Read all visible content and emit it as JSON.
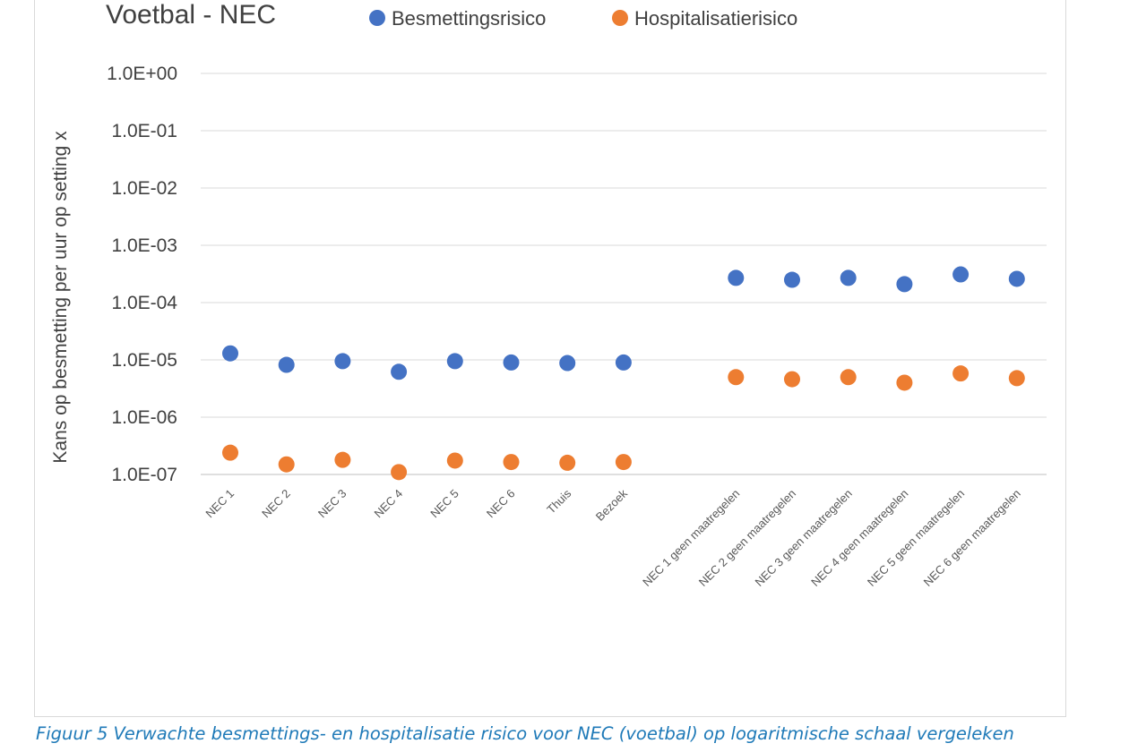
{
  "chart_data": {
    "type": "scatter",
    "title": "Voetbal - NEC",
    "xlabel": "",
    "ylabel": "Kans op besmetting per uur op setting x",
    "yscale": "log",
    "ylim": [
      1e-07,
      1
    ],
    "yticks": [
      "1.0E-07",
      "1.0E-06",
      "1.0E-05",
      "1.0E-04",
      "1.0E-03",
      "1.0E-02",
      "1.0E-01",
      "1.0E+00"
    ],
    "grid": true,
    "legend_position": "top",
    "categories": [
      "NEC 1",
      "NEC 2",
      "NEC 3",
      "NEC 4",
      "NEC 5",
      "NEC 6",
      "Thuis",
      "Bezoek",
      "",
      "NEC 1 geen maatregelen",
      "NEC 2 geen maatregelen",
      "NEC 3 geen maatregelen",
      "NEC 4 geen maatregelen",
      "NEC 5 geen maatregelen",
      "NEC 6 geen maatregelen"
    ],
    "series": [
      {
        "name": "Besmettingsrisico",
        "color": "#4472c4",
        "values": [
          1.3e-05,
          8.2e-06,
          9.5e-06,
          6.2e-06,
          9.5e-06,
          9e-06,
          8.8e-06,
          9e-06,
          null,
          0.00027,
          0.00025,
          0.00027,
          0.00021,
          0.00031,
          0.00026
        ]
      },
      {
        "name": "Hospitalisatierisico",
        "color": "#ed7d31",
        "values": [
          2.4e-07,
          1.5e-07,
          1.8e-07,
          1.1e-07,
          1.75e-07,
          1.65e-07,
          1.6e-07,
          1.65e-07,
          null,
          5e-06,
          4.6e-06,
          5e-06,
          4e-06,
          5.8e-06,
          4.8e-06
        ]
      }
    ]
  },
  "caption": "Figuur 5 Verwachte besmettings- en hospitalisatie risico voor NEC (voetbal) op logaritmische schaal vergeleken"
}
